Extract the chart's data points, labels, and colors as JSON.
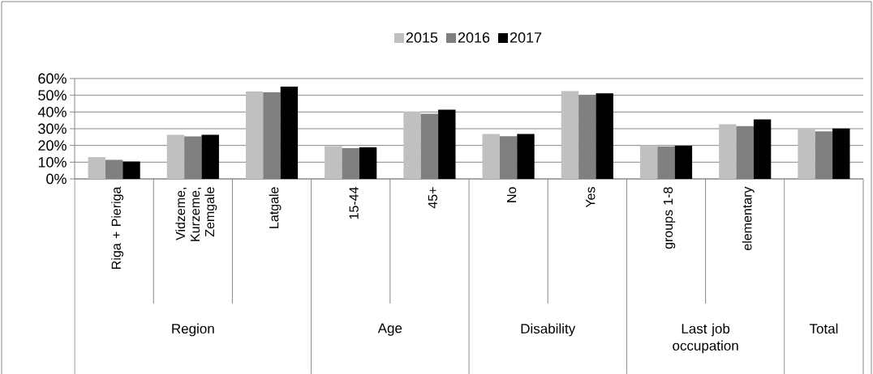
{
  "chart_data": {
    "type": "bar",
    "categories": [
      "Riga + Pieriga",
      "Vidzeme, Kurzeme, Zemgale",
      "Latgale",
      "15-44",
      "45+",
      "No",
      "Yes",
      "groups  1-8",
      "elementary",
      null
    ],
    "series": [
      {
        "name": "2015",
        "color": "#c0c0c0",
        "values": [
          13.0,
          26.4,
          52.2,
          19.6,
          40.1,
          26.9,
          52.5,
          20.1,
          32.6,
          29.6
        ]
      },
      {
        "name": "2016",
        "color": "#808080",
        "values": [
          11.4,
          25.4,
          51.8,
          18.4,
          39.0,
          25.5,
          50.2,
          19.4,
          31.6,
          28.4
        ]
      },
      {
        "name": "2017",
        "color": "#000000",
        "values": [
          10.4,
          26.4,
          55.2,
          18.9,
          41.4,
          26.9,
          51.2,
          19.8,
          35.6,
          30.1
        ]
      }
    ],
    "ylim": [
      0,
      60
    ],
    "yticks": [
      {
        "value": 0,
        "label": "0%"
      },
      {
        "value": 10,
        "label": "10%"
      },
      {
        "value": 20,
        "label": "20%"
      },
      {
        "value": 30,
        "label": "30%"
      },
      {
        "value": 40,
        "label": "40%"
      },
      {
        "value": 50,
        "label": "50%"
      },
      {
        "value": 60,
        "label": "60%"
      }
    ],
    "grid": "y",
    "legend": "top",
    "annotations": [
      "Region",
      "Age",
      "Disability",
      "Last job occupation",
      "Total"
    ]
  }
}
